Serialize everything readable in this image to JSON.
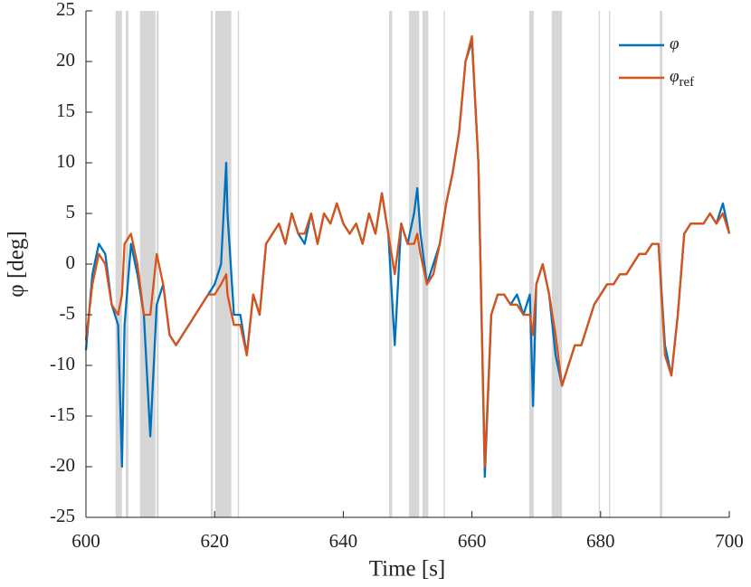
{
  "chart_data": {
    "type": "line",
    "xlabel": "Time [s]",
    "ylabel": "φ [deg]",
    "xlim": [
      600,
      700
    ],
    "ylim": [
      -25,
      25
    ],
    "xticks": [
      600,
      620,
      640,
      660,
      680,
      700
    ],
    "yticks": [
      -25,
      -20,
      -15,
      -10,
      -5,
      0,
      5,
      10,
      15,
      20,
      25
    ],
    "legend": "upper right",
    "shade_color": "#cfcfcf",
    "shaded_regions": [
      [
        604.6,
        605.6
      ],
      [
        606.2,
        606.6
      ],
      [
        608.4,
        610.8
      ],
      [
        611.0,
        611.3
      ],
      [
        619.4,
        619.7
      ],
      [
        620.1,
        622.6
      ],
      [
        623.6,
        623.8
      ],
      [
        647.1,
        647.6
      ],
      [
        650.2,
        651.8
      ],
      [
        652.3,
        653.2
      ],
      [
        655.6,
        655.8
      ],
      [
        668.9,
        669.6
      ],
      [
        672.4,
        674.0
      ],
      [
        679.7,
        679.9
      ],
      [
        681.3,
        681.5
      ],
      [
        689.2,
        689.6
      ]
    ],
    "x": [
      600,
      601,
      602,
      603,
      604,
      605,
      605.6,
      606,
      607,
      608,
      609,
      610,
      611,
      612,
      613,
      614,
      615,
      616,
      617,
      618,
      619,
      620,
      621,
      621.8,
      622,
      623,
      624,
      625,
      626,
      627,
      628,
      629,
      630,
      631,
      632,
      633,
      634,
      635,
      636,
      637,
      638,
      639,
      640,
      641,
      642,
      643,
      644,
      645,
      646,
      647,
      648,
      649,
      650,
      651,
      651.5,
      652,
      653,
      654,
      655,
      656,
      657,
      658,
      659,
      660,
      661,
      662,
      663,
      664,
      665,
      666,
      667,
      668,
      669,
      669.5,
      670,
      671,
      672,
      673,
      674,
      675,
      676,
      677,
      678,
      679,
      680,
      681,
      682,
      683,
      684,
      685,
      686,
      687,
      688,
      689,
      690,
      691,
      692,
      693,
      694,
      695,
      696,
      697,
      698,
      699,
      700
    ],
    "series": [
      {
        "name": "φ",
        "color": "#0072bd",
        "values": [
          -8.5,
          -1,
          2,
          1,
          -4,
          -6,
          -20,
          -6,
          2,
          -1,
          -5,
          -17,
          -4,
          -2,
          -7,
          -8,
          -7,
          -6,
          -5,
          -4,
          -3,
          -2,
          0,
          10,
          5,
          -5,
          -5,
          -9,
          -3,
          -5,
          2,
          3,
          4,
          2,
          5,
          3,
          2,
          5,
          2,
          5,
          4,
          6,
          4,
          3,
          4,
          2,
          5,
          3,
          7,
          3,
          -8,
          4,
          2,
          5,
          7.5,
          3,
          -2,
          0,
          2,
          6,
          9,
          13,
          20,
          22,
          10,
          -21,
          -5,
          -3,
          -3,
          -4,
          -3,
          -5,
          -3,
          -14,
          -2,
          0,
          -3,
          -9,
          -12,
          -10,
          -8,
          -8,
          -6,
          -4,
          -3,
          -2,
          -2,
          -1,
          -1,
          0,
          1,
          1,
          2,
          2,
          -8,
          -11,
          -5,
          3,
          4,
          4,
          4,
          5,
          4,
          6,
          3
        ]
      },
      {
        "name": "φ",
        "subscript": "ref",
        "color": "#d95319",
        "values": [
          -7.5,
          -2,
          1,
          0,
          -4,
          -5,
          -3,
          2,
          3,
          0,
          -5,
          -5,
          1,
          -2,
          -7,
          -8,
          -7,
          -6,
          -5,
          -4,
          -3,
          -3,
          -2,
          -1,
          -3,
          -6,
          -6,
          -9,
          -3,
          -5,
          2,
          3,
          4,
          2,
          5,
          3,
          3,
          5,
          2,
          5,
          4,
          6,
          4,
          3,
          4,
          2,
          5,
          3,
          7,
          3,
          -1,
          4,
          2,
          2,
          3,
          1,
          -2,
          -1,
          2,
          6,
          9,
          13,
          20,
          22.5,
          10,
          -20,
          -5,
          -3,
          -3,
          -4,
          -4,
          -5,
          -5,
          -7,
          -2,
          0,
          -3,
          -7,
          -12,
          -10,
          -8,
          -8,
          -6,
          -4,
          -3,
          -2,
          -2,
          -1,
          -1,
          0,
          1,
          1,
          2,
          2,
          -9,
          -11,
          -5,
          3,
          4,
          4,
          4,
          5,
          4,
          5,
          3
        ]
      }
    ]
  }
}
